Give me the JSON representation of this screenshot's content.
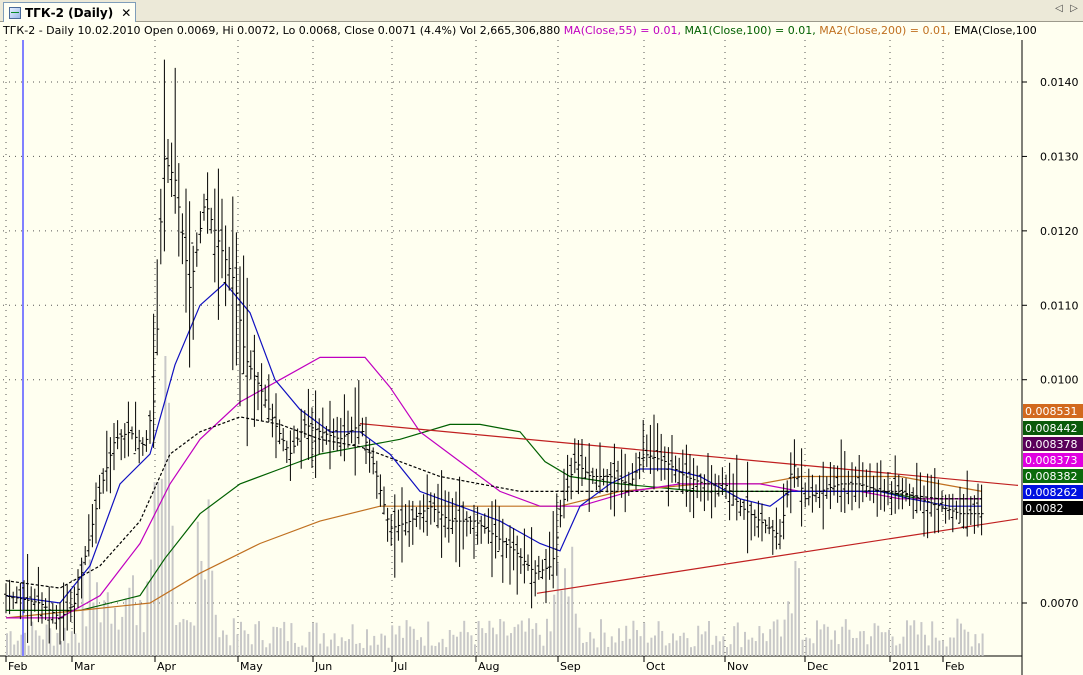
{
  "tab": {
    "title": "ТГК-2 (Daily)",
    "icon": "chart-icon",
    "close_glyph": "✕"
  },
  "nav": {
    "prev_glyph": "◁",
    "next_glyph": "▷"
  },
  "info": {
    "symbol_line": "ТГК-2 - Daily 10.02.2010 Open 0.0069, Hi 0.0072, Lo 0.0068, Close 0.0071 (4.4%) Vol 2,665,306,880",
    "ma": "MA(Close,55) = 0.01,",
    "ma1": "MA1(Close,100) = 0.01,",
    "ma2": "MA2(Close,200) = 0.01,",
    "ema": "EMA(Close,100"
  },
  "chart_data": {
    "type": "line",
    "y_ticks": [
      "0.0140",
      "0.0130",
      "0.0120",
      "0.0110",
      "0.0100",
      "0.0070"
    ],
    "y_tick_values": [
      0.014,
      0.013,
      0.012,
      0.011,
      0.01,
      0.007
    ],
    "x_labels": [
      "Feb",
      "Mar",
      "Apr",
      "May",
      "Jun",
      "Jul",
      "Aug",
      "Sep",
      "Oct",
      "Nov",
      "Dec",
      "2011",
      "Feb"
    ],
    "ylim": [
      0.0065,
      0.0145
    ],
    "price_labels": [
      {
        "text": "0.008531",
        "bg": "#d2691e",
        "fg": "#ffffff",
        "value": 0.008531
      },
      {
        "text": "0.008442",
        "bg": "#0a5a0a",
        "fg": "#ffffff",
        "value": 0.008442
      },
      {
        "text": "0.008378",
        "bg": "#5a005a",
        "fg": "#ffffff",
        "value": 0.008378
      },
      {
        "text": "0.008373",
        "bg": "#e000e0",
        "fg": "#ffffff",
        "value": 0.008373
      },
      {
        "text": "0.008382",
        "bg": "#0a6a0a",
        "fg": "#ffffff",
        "value": 0.008382
      },
      {
        "text": "0.008262",
        "bg": "#0010e0",
        "fg": "#ffffff",
        "value": 0.008262
      },
      {
        "text": "0.0082",
        "bg": "#000000",
        "fg": "#ffffff",
        "value": 0.0082
      }
    ],
    "series_colors": {
      "price": "#000000",
      "ma_fast": "#1010c0",
      "ma55": "#c000c0",
      "ma100": "#006000",
      "ma200": "#c07020",
      "volume": "#c8c8c8",
      "trendline": "#c02020",
      "cursor": "#8080ff"
    },
    "grid": true
  }
}
